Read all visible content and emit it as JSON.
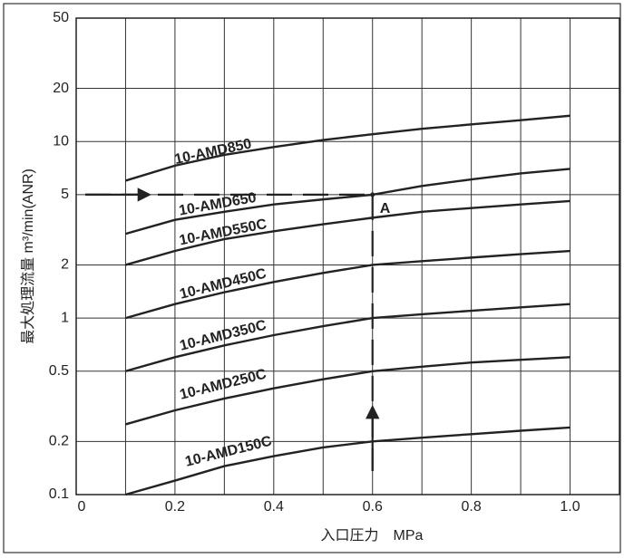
{
  "chart_data": {
    "type": "line",
    "y_label": "最大処理流量 m³/min(ANR)",
    "x_label": "入口圧力　MPa",
    "log_y": true,
    "grid": true,
    "color": "#222222",
    "x": [
      0.1,
      0.2,
      0.3,
      0.4,
      0.5,
      0.6,
      0.7,
      0.8,
      0.9,
      1.0
    ],
    "xlim": [
      0,
      1.1
    ],
    "xticks": [
      0,
      0.2,
      0.4,
      0.6,
      0.8,
      {
        "value": 1,
        "label": "1.0"
      }
    ],
    "xminor": [
      0.1,
      0.3,
      0.5,
      0.7,
      0.9
    ],
    "ylim": [
      0.1,
      50
    ],
    "yticks": [
      0.1,
      0.2,
      0.5,
      1,
      2,
      5,
      10,
      20,
      50
    ],
    "series": [
      {
        "name": "10-AMD850",
        "values": [
          6,
          7.3,
          8.4,
          9.3,
          10.2,
          11,
          11.8,
          12.5,
          13.2,
          14
        ]
      },
      {
        "name": "10-AMD650",
        "values": [
          3,
          3.6,
          4.0,
          4.4,
          4.7,
          5.0,
          5.6,
          6.1,
          6.6,
          7
        ]
      },
      {
        "name": "10-AMD550C",
        "values": [
          2,
          2.4,
          2.8,
          3.1,
          3.4,
          3.7,
          4.0,
          4.2,
          4.4,
          4.6
        ]
      },
      {
        "name": "10-AMD450C",
        "values": [
          1,
          1.2,
          1.4,
          1.6,
          1.8,
          2.0,
          2.1,
          2.2,
          2.3,
          2.4
        ]
      },
      {
        "name": "10-AMD350C",
        "values": [
          0.5,
          0.6,
          0.7,
          0.8,
          0.9,
          1.0,
          1.05,
          1.1,
          1.15,
          1.2
        ]
      },
      {
        "name": "10-AMD250C",
        "values": [
          0.25,
          0.3,
          0.35,
          0.4,
          0.45,
          0.5,
          0.53,
          0.56,
          0.58,
          0.6
        ]
      },
      {
        "name": "10-AMD150C",
        "values": [
          0.1,
          0.12,
          0.145,
          0.165,
          0.185,
          0.2,
          0.21,
          0.22,
          0.23,
          0.24
        ]
      }
    ],
    "example": {
      "x": 0.6,
      "y": 5,
      "label": "A"
    }
  }
}
